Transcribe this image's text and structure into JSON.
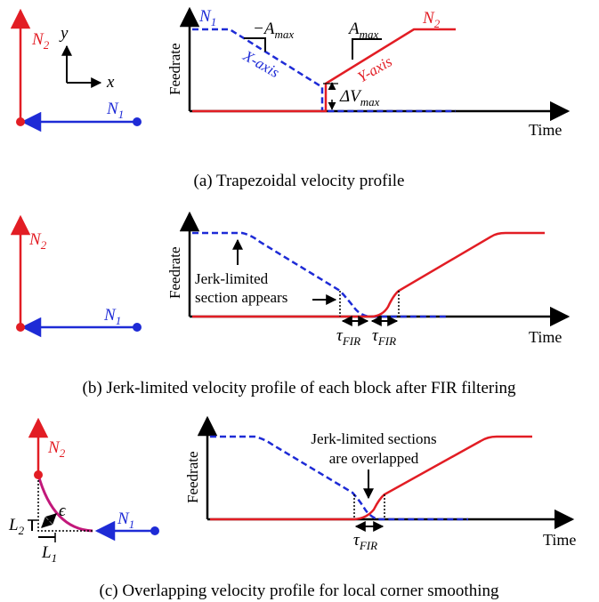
{
  "colors": {
    "blue": "#1e2bd6",
    "red": "#e21d24",
    "black": "#000000",
    "magenta": "#c2187a"
  },
  "panel_a": {
    "n2": "N",
    "n2_sub": "2",
    "n1": "N",
    "n1_sub": "1",
    "axis_y": "y",
    "axis_x": "x",
    "ylabel": "Feedrate",
    "xlabel": "Time",
    "label_n1": "N",
    "label_n1_sub": "1",
    "label_n2": "N",
    "label_n2_sub": "2",
    "neg_amax": "−A",
    "neg_amax_sub": "max",
    "amax": "A",
    "amax_sub": "max",
    "x_axis_label": "X-axis",
    "y_axis_label": "Y-axis",
    "dv": "ΔV",
    "dv_sub": "max",
    "caption": "(a) Trapezoidal velocity profile"
  },
  "panel_b": {
    "n2": "N",
    "n2_sub": "2",
    "n1": "N",
    "n1_sub": "1",
    "ylabel": "Feedrate",
    "xlabel": "Time",
    "annotation_line1": "Jerk-limited",
    "annotation_line2": "section appears",
    "tau": "τ",
    "tau_sub": "FIR",
    "caption": "(b) Jerk-limited velocity profile of each block after FIR filtering"
  },
  "panel_c": {
    "n2": "N",
    "n2_sub": "2",
    "n1": "N",
    "n1_sub": "1",
    "eps": "ϵ",
    "l2": "L",
    "l2_sub": "2",
    "l1": "L",
    "l1_sub": "1",
    "ylabel": "Feedrate",
    "xlabel": "Time",
    "annotation_line1": "Jerk-limited sections",
    "annotation_line2": "are overlapped",
    "tau": "τ",
    "tau_sub": "FIR",
    "caption": "(c) Overlapping velocity profile for local corner smoothing"
  }
}
